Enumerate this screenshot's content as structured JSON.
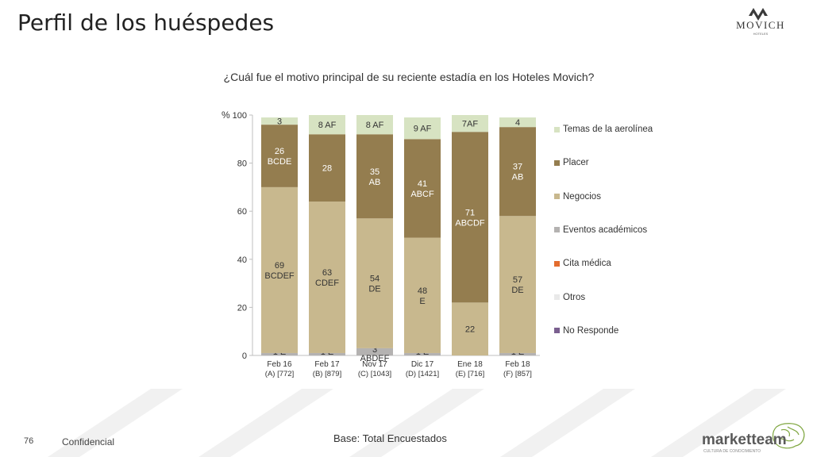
{
  "page": {
    "title": "Perfil de los huéspedes",
    "brand": "MOVICH",
    "brand_sub": "HOTELES",
    "base_note": "Base: Total Encuestados",
    "page_number": "76",
    "confidential": "Confidencial",
    "footer_brand": "marketteam",
    "footer_sub": "CULTURA DE CONOCIMIENTO"
  },
  "colors": {
    "temas": "#d7e3c2",
    "placer": "#947d4f",
    "negocios": "#c8b88e",
    "eventos": "#b4b2b1",
    "cita": "#e36c2e",
    "otros": "#e9e9e9",
    "no_responde": "#7a5f8f"
  },
  "chart_data": {
    "type": "bar",
    "stacked": true,
    "title": "¿Cuál fue el motivo principal de su reciente estadía en los Hoteles Movich?",
    "ylabel": "%",
    "ylim": [
      0,
      100
    ],
    "yticks": [
      0,
      20,
      40,
      60,
      80,
      100
    ],
    "grid": false,
    "legend_position": "right",
    "categories": [
      {
        "line1": "Feb 16",
        "line2": "(A) [772]"
      },
      {
        "line1": "Feb 17",
        "line2": "(B) [879]"
      },
      {
        "line1": "Nov 17",
        "line2": "(C) [1043]"
      },
      {
        "line1": "Dic 17",
        "line2": "(D) [1421]"
      },
      {
        "line1": "Ene 18",
        "line2": "(E) [716]"
      },
      {
        "line1": "Feb 18",
        "line2": "(F) [857]"
      }
    ],
    "series": [
      {
        "name": "No Responde",
        "color_key": "no_responde",
        "values": [
          0,
          0,
          0,
          0,
          0,
          0
        ],
        "labels": [
          "",
          "",
          "",
          "",
          "",
          ""
        ]
      },
      {
        "name": "Otros",
        "color_key": "otros",
        "values": [
          0,
          0,
          0,
          0,
          0,
          0
        ],
        "labels": [
          "",
          "",
          "",
          "",
          "",
          ""
        ]
      },
      {
        "name": "Cita médica",
        "color_key": "cita",
        "values": [
          0,
          0,
          0,
          0,
          0,
          0
        ],
        "labels": [
          "",
          "",
          "",
          "",
          "",
          ""
        ]
      },
      {
        "name": "Eventos académicos",
        "color_key": "eventos",
        "values": [
          1,
          1,
          3,
          1,
          0,
          1
        ],
        "labels": [
          "1 E",
          "1 E",
          "3 ABDEF",
          "1 E",
          "",
          "1 E"
        ]
      },
      {
        "name": "Negocios",
        "color_key": "negocios",
        "values": [
          69,
          63,
          54,
          48,
          22,
          57
        ],
        "labels": [
          "69 BCDEF",
          "63 CDEF",
          "54 DE",
          "48 E",
          "22",
          "57 DE"
        ]
      },
      {
        "name": "Placer",
        "color_key": "placer",
        "values": [
          26,
          28,
          35,
          41,
          71,
          37
        ],
        "labels": [
          "26 BCDE",
          "28",
          "35 AB",
          "41 ABCF",
          "71 ABCDF",
          "37 AB"
        ]
      },
      {
        "name": "Temas de la aerolínea",
        "color_key": "temas",
        "values": [
          3,
          8,
          8,
          9,
          7,
          4
        ],
        "labels": [
          "3",
          "8 AF",
          "8 AF",
          "9 AF",
          "7AF",
          "4"
        ]
      }
    ]
  }
}
